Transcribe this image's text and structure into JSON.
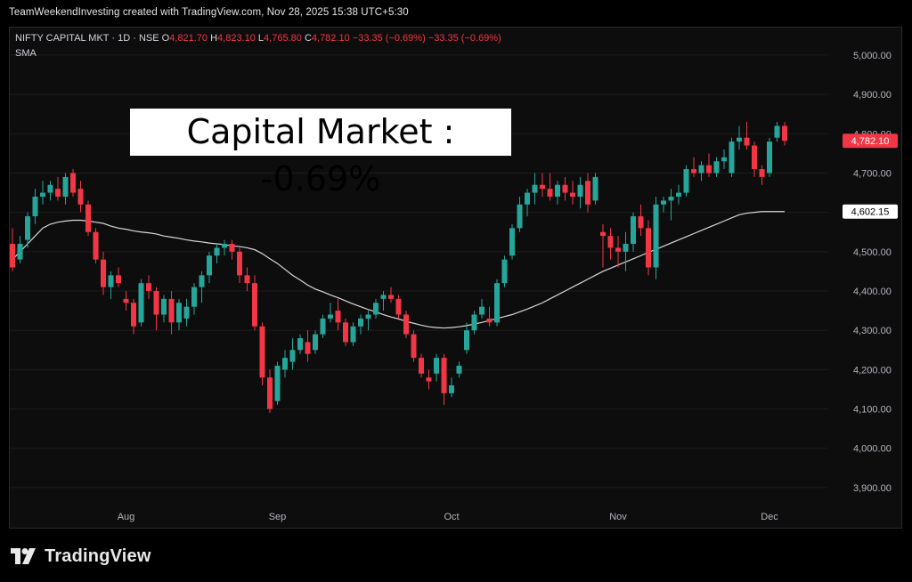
{
  "header": {
    "credit": "TeamWeekendInvesting created with TradingView.com, Nov 28, 2025 15:38 UTC+5:30"
  },
  "legend": {
    "symbol": "NIFTY CAPITAL MKT · 1D · NSE",
    "o_label": "O",
    "o_value": "4,821.70",
    "h_label": "H",
    "h_value": "4,823.10",
    "l_label": "L",
    "l_value": "4,765.80",
    "c_label": "C",
    "c_value": "4,782.10",
    "change": "−33.35 (−0.69%)",
    "change2": "−33.35 (−0.69%)",
    "indicator": "SMA"
  },
  "banner": {
    "text": "Capital Market : -0.69%"
  },
  "footer": {
    "brand": "TradingView",
    "logo_glyph": "17"
  },
  "colors": {
    "up": "#26a69a",
    "down": "#f23645",
    "sma": "#d8d8d8",
    "grid": "#1c1c1c",
    "axis_text": "#b2b5be"
  },
  "chart_data": {
    "type": "candlestick",
    "ylim": [
      3850,
      5070
    ],
    "y_ticks": [
      "5,000.00",
      "4,900.00",
      "4,800.00",
      "4,700.00",
      "4,600.00",
      "4,500.00",
      "4,400.00",
      "4,300.00",
      "4,200.00",
      "4,100.00",
      "4,000.00",
      "3,900.00"
    ],
    "y_tick_values": [
      5000,
      4900,
      4800,
      4700,
      4600,
      4500,
      4400,
      4300,
      4200,
      4100,
      4000,
      3900
    ],
    "x_labels": [
      {
        "label": "Aug",
        "index": 15
      },
      {
        "label": "Sep",
        "index": 35
      },
      {
        "label": "Oct",
        "index": 58
      },
      {
        "label": "Nov",
        "index": 80
      },
      {
        "label": "Dec",
        "index": 100
      }
    ],
    "last_price_label": "4,782.10",
    "last_price": 4782.1,
    "sma_label": "4,602.15",
    "sma_value": 4602.15,
    "candles": [
      [
        4520,
        4560,
        4450,
        4460
      ],
      [
        4480,
        4540,
        4470,
        4520
      ],
      [
        4530,
        4600,
        4510,
        4590
      ],
      [
        4590,
        4660,
        4570,
        4640
      ],
      [
        4640,
        4680,
        4620,
        4650
      ],
      [
        4650,
        4680,
        4630,
        4670
      ],
      [
        4660,
        4690,
        4630,
        4640
      ],
      [
        4640,
        4700,
        4620,
        4690
      ],
      [
        4700,
        4710,
        4640,
        4650
      ],
      [
        4660,
        4680,
        4600,
        4620
      ],
      [
        4620,
        4630,
        4540,
        4550
      ],
      [
        4550,
        4560,
        4470,
        4480
      ],
      [
        4480,
        4500,
        4390,
        4410
      ],
      [
        4410,
        4450,
        4380,
        4440
      ],
      [
        4440,
        4460,
        4410,
        4420
      ],
      [
        4380,
        4400,
        4350,
        4370
      ],
      [
        4370,
        4380,
        4290,
        4310
      ],
      [
        4320,
        4430,
        4310,
        4420
      ],
      [
        4420,
        4440,
        4380,
        4400
      ],
      [
        4400,
        4410,
        4300,
        4340
      ],
      [
        4340,
        4390,
        4320,
        4380
      ],
      [
        4380,
        4400,
        4290,
        4320
      ],
      [
        4320,
        4380,
        4300,
        4370
      ],
      [
        4330,
        4380,
        4310,
        4360
      ],
      [
        4360,
        4420,
        4340,
        4410
      ],
      [
        4410,
        4450,
        4370,
        4440
      ],
      [
        4440,
        4500,
        4420,
        4490
      ],
      [
        4490,
        4520,
        4470,
        4510
      ],
      [
        4510,
        4530,
        4490,
        4520
      ],
      [
        4520,
        4530,
        4480,
        4500
      ],
      [
        4500,
        4510,
        4420,
        4440
      ],
      [
        4440,
        4460,
        4400,
        4420
      ],
      [
        4420,
        4440,
        4300,
        4310
      ],
      [
        4310,
        4320,
        4160,
        4180
      ],
      [
        4180,
        4200,
        4090,
        4100
      ],
      [
        4120,
        4220,
        4110,
        4210
      ],
      [
        4200,
        4250,
        4180,
        4230
      ],
      [
        4220,
        4280,
        4200,
        4250
      ],
      [
        4250,
        4290,
        4240,
        4280
      ],
      [
        4270,
        4300,
        4220,
        4240
      ],
      [
        4250,
        4300,
        4240,
        4290
      ],
      [
        4290,
        4340,
        4280,
        4330
      ],
      [
        4330,
        4370,
        4320,
        4340
      ],
      [
        4350,
        4380,
        4300,
        4320
      ],
      [
        4320,
        4330,
        4260,
        4270
      ],
      [
        4270,
        4320,
        4260,
        4310
      ],
      [
        4310,
        4340,
        4290,
        4330
      ],
      [
        4330,
        4350,
        4300,
        4340
      ],
      [
        4340,
        4380,
        4330,
        4370
      ],
      [
        4380,
        4400,
        4350,
        4390
      ],
      [
        4390,
        4410,
        4370,
        4380
      ],
      [
        4380,
        4390,
        4330,
        4340
      ],
      [
        4340,
        4350,
        4280,
        4290
      ],
      [
        4290,
        4300,
        4220,
        4230
      ],
      [
        4230,
        4240,
        4180,
        4190
      ],
      [
        4180,
        4200,
        4150,
        4170
      ],
      [
        4190,
        4240,
        4170,
        4230
      ],
      [
        4230,
        4240,
        4110,
        4140
      ],
      [
        4140,
        4180,
        4130,
        4160
      ],
      [
        4190,
        4220,
        4180,
        4210
      ],
      [
        4250,
        4320,
        4240,
        4300
      ],
      [
        4300,
        4350,
        4290,
        4340
      ],
      [
        4340,
        4380,
        4330,
        4360
      ],
      [
        4330,
        4360,
        4310,
        4320
      ],
      [
        4320,
        4430,
        4310,
        4420
      ],
      [
        4420,
        4490,
        4410,
        4480
      ],
      [
        4490,
        4570,
        4480,
        4560
      ],
      [
        4560,
        4640,
        4550,
        4620
      ],
      [
        4620,
        4660,
        4590,
        4650
      ],
      [
        4650,
        4700,
        4620,
        4670
      ],
      [
        4670,
        4700,
        4640,
        4660
      ],
      [
        4660,
        4700,
        4630,
        4640
      ],
      [
        4640,
        4680,
        4620,
        4670
      ],
      [
        4670,
        4690,
        4630,
        4650
      ],
      [
        4650,
        4680,
        4620,
        4640
      ],
      [
        4640,
        4690,
        4610,
        4670
      ],
      [
        4680,
        4700,
        4600,
        4620
      ],
      [
        4630,
        4700,
        4620,
        4690
      ],
      [
        4550,
        4570,
        4460,
        4540
      ],
      [
        4540,
        4560,
        4480,
        4510
      ],
      [
        4510,
        4540,
        4460,
        4500
      ],
      [
        4500,
        4550,
        4450,
        4520
      ],
      [
        4520,
        4600,
        4500,
        4590
      ],
      [
        4590,
        4620,
        4540,
        4560
      ],
      [
        4560,
        4580,
        4440,
        4460
      ],
      [
        4460,
        4640,
        4430,
        4620
      ],
      [
        4620,
        4640,
        4600,
        4630
      ],
      [
        4630,
        4660,
        4580,
        4640
      ],
      [
        4640,
        4670,
        4620,
        4650
      ],
      [
        4650,
        4720,
        4640,
        4710
      ],
      [
        4710,
        4740,
        4690,
        4700
      ],
      [
        4700,
        4730,
        4680,
        4720
      ],
      [
        4720,
        4750,
        4690,
        4700
      ],
      [
        4700,
        4740,
        4690,
        4730
      ],
      [
        4730,
        4760,
        4710,
        4740
      ],
      [
        4700,
        4790,
        4690,
        4780
      ],
      [
        4780,
        4820,
        4760,
        4790
      ],
      [
        4790,
        4830,
        4760,
        4770
      ],
      [
        4770,
        4780,
        4690,
        4710
      ],
      [
        4710,
        4720,
        4670,
        4690
      ],
      [
        4700,
        4790,
        4690,
        4780
      ],
      [
        4790,
        4830,
        4780,
        4820
      ],
      [
        4820,
        4830,
        4770,
        4782
      ]
    ],
    "sma": [
      4480,
      4500,
      4520,
      4540,
      4560,
      4570,
      4575,
      4578,
      4580,
      4580,
      4578,
      4575,
      4572,
      4565,
      4560,
      4557,
      4553,
      4550,
      4548,
      4545,
      4540,
      4537,
      4534,
      4530,
      4527,
      4525,
      4522,
      4520,
      4518,
      4515,
      4513,
      4510,
      4505,
      4495,
      4482,
      4470,
      4455,
      4440,
      4428,
      4415,
      4405,
      4398,
      4390,
      4383,
      4375,
      4367,
      4360,
      4353,
      4347,
      4340,
      4334,
      4329,
      4323,
      4318,
      4313,
      4309,
      4307,
      4306,
      4307,
      4309,
      4312,
      4316,
      4320,
      4325,
      4330,
      4335,
      4340,
      4347,
      4354,
      4362,
      4370,
      4380,
      4390,
      4400,
      4410,
      4420,
      4430,
      4440,
      4450,
      4458,
      4466,
      4474,
      4482,
      4490,
      4498,
      4506,
      4514,
      4522,
      4530,
      4538,
      4546,
      4554,
      4562,
      4570,
      4578,
      4586,
      4594,
      4598,
      4600,
      4602,
      4602,
      4602,
      4602
    ]
  }
}
